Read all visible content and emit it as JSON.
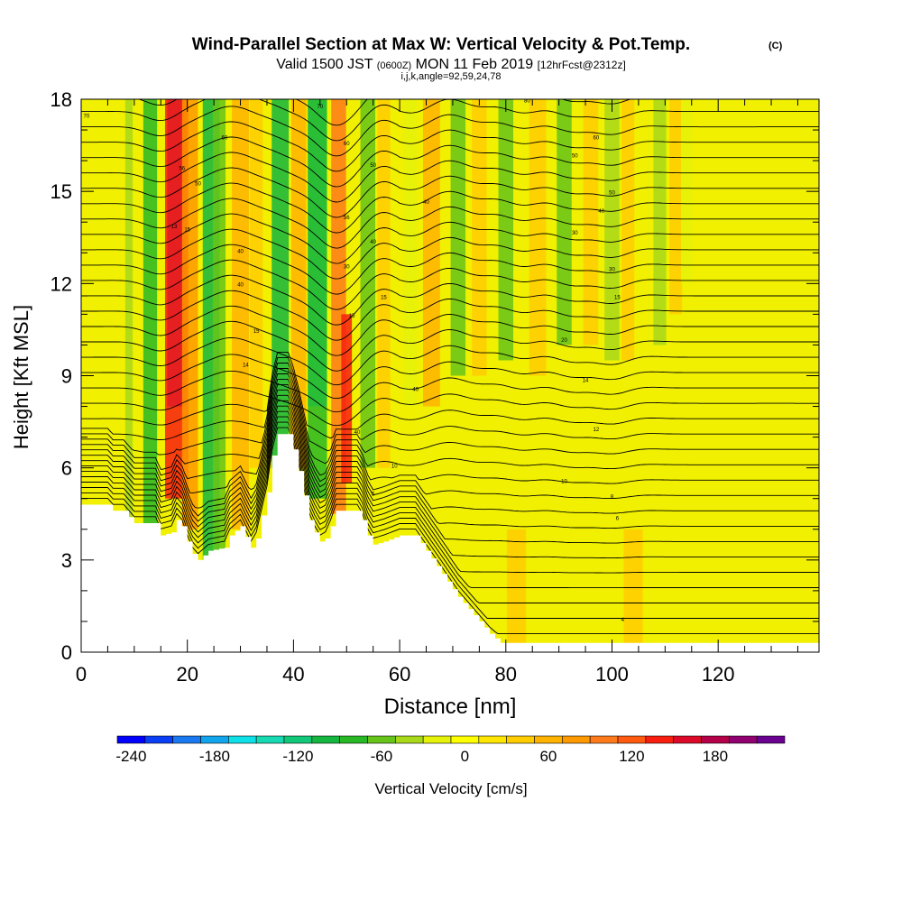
{
  "chart_data": {
    "type": "heatmap",
    "title": "Wind-Parallel Section at Max W: Vertical Velocity & Pot.Temp.",
    "title_mark": "(C)",
    "subtitle": {
      "valid_prefix": "Valid 1500 JST",
      "utc": "(0600Z)",
      "date": "MON 11 Feb 2019",
      "forecast": "[12hrFcst@2312z]"
    },
    "grid_info": "i,j,k,angle=92,59,24,78",
    "xlabel": "Distance [nm]",
    "ylabel": "Height [Kft MSL]",
    "xlim": [
      0,
      139
    ],
    "ylim": [
      0,
      18
    ],
    "x_ticks": [
      0,
      20,
      40,
      60,
      80,
      100,
      120
    ],
    "y_ticks": [
      0,
      3,
      6,
      9,
      12,
      15,
      18
    ],
    "colorbar": {
      "label": "Vertical Velocity [cm/s]",
      "range": [
        -250,
        230
      ],
      "step": 20,
      "tick_values": [
        -240,
        -180,
        -120,
        -60,
        0,
        60,
        120,
        180
      ],
      "colors": [
        "#0000ff",
        "#0a3ff5",
        "#1a78f0",
        "#12a5ee",
        "#0ee0e8",
        "#17d9b2",
        "#10c878",
        "#14b640",
        "#28b826",
        "#66c41a",
        "#a8d81a",
        "#e6f20a",
        "#ffff00",
        "#ffe600",
        "#ffcc00",
        "#ffb300",
        "#ff9900",
        "#ff7a1a",
        "#ff5a10",
        "#f81e10",
        "#dc0a28",
        "#b40048",
        "#900070",
        "#6a0090"
      ]
    },
    "terrain_profile_kft": [
      [
        0,
        4.8
      ],
      [
        5,
        4.8
      ],
      [
        6,
        4.6
      ],
      [
        8,
        4.6
      ],
      [
        10,
        4.2
      ],
      [
        14,
        4.2
      ],
      [
        15,
        3.8
      ],
      [
        17,
        3.9
      ],
      [
        18,
        4.3
      ],
      [
        19,
        4.1
      ],
      [
        20,
        3.6
      ],
      [
        21,
        3.2
      ],
      [
        22,
        3.0
      ],
      [
        24,
        3.3
      ],
      [
        27,
        3.4
      ],
      [
        28,
        3.8
      ],
      [
        30,
        4.1
      ],
      [
        32,
        3.4
      ],
      [
        33,
        3.7
      ],
      [
        35,
        5.2
      ],
      [
        36,
        6.4
      ],
      [
        37,
        7.1
      ],
      [
        39,
        7.1
      ],
      [
        40,
        6.6
      ],
      [
        41,
        5.9
      ],
      [
        42,
        5.1
      ],
      [
        43,
        4.3
      ],
      [
        44,
        3.9
      ],
      [
        45,
        3.6
      ],
      [
        46,
        3.7
      ],
      [
        47,
        4.1
      ],
      [
        48,
        4.6
      ],
      [
        50,
        4.6
      ],
      [
        52,
        4.6
      ],
      [
        53,
        4.3
      ],
      [
        54,
        3.8
      ],
      [
        55,
        3.5
      ],
      [
        57,
        3.6
      ],
      [
        60,
        3.8
      ],
      [
        63,
        3.8
      ],
      [
        65,
        3.3
      ],
      [
        67,
        2.8
      ],
      [
        69,
        2.3
      ],
      [
        71,
        1.8
      ],
      [
        73,
        1.4
      ],
      [
        75,
        1.0
      ],
      [
        77,
        0.6
      ],
      [
        79,
        0.3
      ],
      [
        139,
        0.3
      ]
    ],
    "vertical_velocity_bands": [
      {
        "x": 9,
        "w": 0.7,
        "v": -40,
        "z0": 0,
        "z1": 18
      },
      {
        "x": 13,
        "w": 1.3,
        "v": -80,
        "z0": 0,
        "z1": 18
      },
      {
        "x": 18,
        "w": 1.8,
        "v": 210,
        "z0": 8,
        "z1": 18
      },
      {
        "x": 18,
        "w": 2.2,
        "v": 130,
        "z0": 5,
        "z1": 18
      },
      {
        "x": 20.5,
        "w": 1.5,
        "v": 70,
        "z0": 4,
        "z1": 18
      },
      {
        "x": 24.5,
        "w": 1.6,
        "v": -100,
        "z0": 3,
        "z1": 18
      },
      {
        "x": 26,
        "w": 1.2,
        "v": -60,
        "z0": 3,
        "z1": 18
      },
      {
        "x": 30,
        "w": 1.6,
        "v": 60,
        "z0": 4,
        "z1": 18
      },
      {
        "x": 33,
        "w": 1.2,
        "v": 40,
        "z0": 6,
        "z1": 18
      },
      {
        "x": 37.5,
        "w": 1.6,
        "v": -100,
        "z0": 6,
        "z1": 18
      },
      {
        "x": 41,
        "w": 1.4,
        "v": 60,
        "z0": 6,
        "z1": 18
      },
      {
        "x": 44.5,
        "w": 1.8,
        "v": -150,
        "z0": 8,
        "z1": 18
      },
      {
        "x": 44.5,
        "w": 1.8,
        "v": -90,
        "z0": 5,
        "z1": 18
      },
      {
        "x": 48.5,
        "w": 1.4,
        "v": 90,
        "z0": 4.5,
        "z1": 18
      },
      {
        "x": 50,
        "w": 1.0,
        "v": 130,
        "z0": 5.5,
        "z1": 11
      },
      {
        "x": 54,
        "w": 1.4,
        "v": -60,
        "z0": 6,
        "z1": 18
      },
      {
        "x": 57,
        "w": 1.2,
        "v": 40,
        "z0": 6,
        "z1": 18
      },
      {
        "x": 62,
        "w": 1.2,
        "v": -30,
        "z0": 8,
        "z1": 18
      },
      {
        "x": 66,
        "w": 1.6,
        "v": 50,
        "z0": 8,
        "z1": 18
      },
      {
        "x": 71,
        "w": 1.4,
        "v": -70,
        "z0": 9,
        "z1": 18
      },
      {
        "x": 75,
        "w": 1.4,
        "v": 40,
        "z0": 9,
        "z1": 18
      },
      {
        "x": 80,
        "w": 1.4,
        "v": -60,
        "z0": 9.5,
        "z1": 18
      },
      {
        "x": 86,
        "w": 1.6,
        "v": 40,
        "z0": 9,
        "z1": 18
      },
      {
        "x": 91,
        "w": 1.4,
        "v": -70,
        "z0": 10,
        "z1": 18
      },
      {
        "x": 96,
        "w": 1.4,
        "v": 30,
        "z0": 10,
        "z1": 18
      },
      {
        "x": 100,
        "w": 1.4,
        "v": -50,
        "z0": 9.5,
        "z1": 18
      },
      {
        "x": 103,
        "w": 1.2,
        "v": 40,
        "z0": 9.5,
        "z1": 18
      },
      {
        "x": 109,
        "w": 1.2,
        "v": -40,
        "z0": 10,
        "z1": 18
      },
      {
        "x": 112,
        "w": 1.2,
        "v": 30,
        "z0": 11,
        "z1": 18
      },
      {
        "x": 114,
        "w": 1.0,
        "v": -30,
        "z0": 12,
        "z1": 18
      },
      {
        "x": 82,
        "w": 1.8,
        "v": 30,
        "z0": 0,
        "z1": 4
      },
      {
        "x": 104,
        "w": 1.8,
        "v": 30,
        "z0": 0,
        "z1": 4
      }
    ],
    "contour_labels": [
      {
        "x": 1,
        "y": 17.4,
        "text": "70"
      },
      {
        "x": 27,
        "y": 16.7,
        "text": "60"
      },
      {
        "x": 19,
        "y": 15.7,
        "text": "56"
      },
      {
        "x": 22,
        "y": 15.2,
        "text": "50"
      },
      {
        "x": 17.5,
        "y": 13.8,
        "text": "13"
      },
      {
        "x": 20,
        "y": 13.7,
        "text": "15"
      },
      {
        "x": 30,
        "y": 13.0,
        "text": "40"
      },
      {
        "x": 30,
        "y": 11.9,
        "text": "40"
      },
      {
        "x": 33,
        "y": 10.4,
        "text": "15"
      },
      {
        "x": 31,
        "y": 9.3,
        "text": "14"
      },
      {
        "x": 45,
        "y": 17.7,
        "text": "70"
      },
      {
        "x": 50,
        "y": 16.5,
        "text": "60"
      },
      {
        "x": 55,
        "y": 15.8,
        "text": "50"
      },
      {
        "x": 65,
        "y": 14.6,
        "text": "40"
      },
      {
        "x": 50,
        "y": 14.1,
        "text": "56"
      },
      {
        "x": 55,
        "y": 13.3,
        "text": "40"
      },
      {
        "x": 50,
        "y": 12.5,
        "text": "30"
      },
      {
        "x": 57,
        "y": 11.5,
        "text": "15"
      },
      {
        "x": 51,
        "y": 10.9,
        "text": "15"
      },
      {
        "x": 63,
        "y": 8.5,
        "text": "40"
      },
      {
        "x": 52,
        "y": 7.1,
        "text": "40"
      },
      {
        "x": 59,
        "y": 6.0,
        "text": "10"
      },
      {
        "x": 55,
        "y": 5.1,
        "text": "5"
      },
      {
        "x": 84,
        "y": 17.9,
        "text": "80"
      },
      {
        "x": 97,
        "y": 16.7,
        "text": "60"
      },
      {
        "x": 93,
        "y": 16.1,
        "text": "50"
      },
      {
        "x": 100,
        "y": 14.9,
        "text": "50"
      },
      {
        "x": 98,
        "y": 14.3,
        "text": "40"
      },
      {
        "x": 93,
        "y": 13.6,
        "text": "30"
      },
      {
        "x": 100,
        "y": 12.4,
        "text": "30"
      },
      {
        "x": 101,
        "y": 11.5,
        "text": "15"
      },
      {
        "x": 91,
        "y": 10.1,
        "text": "20"
      },
      {
        "x": 95,
        "y": 8.8,
        "text": "14"
      },
      {
        "x": 97,
        "y": 7.2,
        "text": "12"
      },
      {
        "x": 91,
        "y": 5.5,
        "text": "10"
      },
      {
        "x": 100,
        "y": 5.0,
        "text": "8"
      },
      {
        "x": 101,
        "y": 4.3,
        "text": "6"
      },
      {
        "x": 102,
        "y": 1.0,
        "text": "4"
      }
    ]
  }
}
